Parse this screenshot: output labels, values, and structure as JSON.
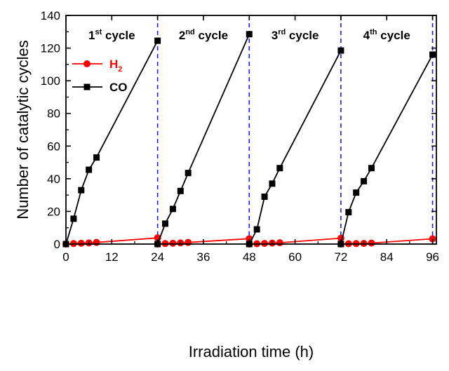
{
  "chart_data": {
    "type": "line",
    "xlabel": "Irradiation time (h)",
    "ylabel": "Number of catalytic cycles",
    "xlim": [
      0,
      97
    ],
    "ylim": [
      0,
      140
    ],
    "xticks": [
      0,
      12,
      24,
      36,
      48,
      60,
      72,
      84,
      96
    ],
    "yticks": [
      0,
      20,
      40,
      60,
      80,
      100,
      120,
      140
    ],
    "grid": false,
    "legend_position": "top-left",
    "cycle_dividers": [
      24,
      48,
      72,
      96
    ],
    "cycle_labels": [
      {
        "ordinal": "1",
        "suffix": "st",
        "text": " cycle",
        "x": 12
      },
      {
        "ordinal": "2",
        "suffix": "nd",
        "text": " cycle",
        "x": 36
      },
      {
        "ordinal": "3",
        "suffix": "rd",
        "text": " cycle",
        "x": 60
      },
      {
        "ordinal": "4",
        "suffix": "th",
        "text": " cycle",
        "x": 84
      }
    ],
    "series": [
      {
        "name_main": "H",
        "name_sub": "2",
        "color": "#ff0000",
        "marker": "circle",
        "segments": [
          [
            [
              0,
              0
            ],
            [
              2,
              0.3
            ],
            [
              4,
              0.5
            ],
            [
              6,
              0.7
            ],
            [
              8,
              1.0
            ],
            [
              24,
              3.8
            ]
          ],
          [
            [
              24,
              0
            ],
            [
              26,
              0.3
            ],
            [
              28,
              0.5
            ],
            [
              30,
              0.7
            ],
            [
              32,
              1.0
            ],
            [
              48,
              3.3
            ]
          ],
          [
            [
              48,
              0
            ],
            [
              50,
              0.2
            ],
            [
              52,
              0.4
            ],
            [
              54,
              0.6
            ],
            [
              56,
              0.8
            ],
            [
              72,
              3.6
            ]
          ],
          [
            [
              72,
              0
            ],
            [
              74,
              0.2
            ],
            [
              76,
              0.3
            ],
            [
              78,
              0.4
            ],
            [
              80,
              0.6
            ],
            [
              96,
              3.2
            ]
          ]
        ]
      },
      {
        "name": "CO",
        "color": "#000000",
        "marker": "square",
        "segments": [
          [
            [
              0,
              0
            ],
            [
              2,
              15.5
            ],
            [
              4,
              33
            ],
            [
              6,
              45.5
            ],
            [
              8,
              53
            ],
            [
              24,
              124.5
            ]
          ],
          [
            [
              24,
              0
            ],
            [
              26,
              12.5
            ],
            [
              28,
              21.5
            ],
            [
              30,
              32.5
            ],
            [
              32,
              43.5
            ],
            [
              48,
              128.5
            ]
          ],
          [
            [
              48,
              0
            ],
            [
              50,
              9
            ],
            [
              52,
              29
            ],
            [
              54,
              37
            ],
            [
              56,
              46.5
            ],
            [
              72,
              118.5
            ]
          ],
          [
            [
              72,
              0
            ],
            [
              74,
              19.5
            ],
            [
              76,
              31.5
            ],
            [
              78,
              38.5
            ],
            [
              80,
              46.5
            ],
            [
              96,
              116
            ]
          ]
        ]
      }
    ]
  }
}
